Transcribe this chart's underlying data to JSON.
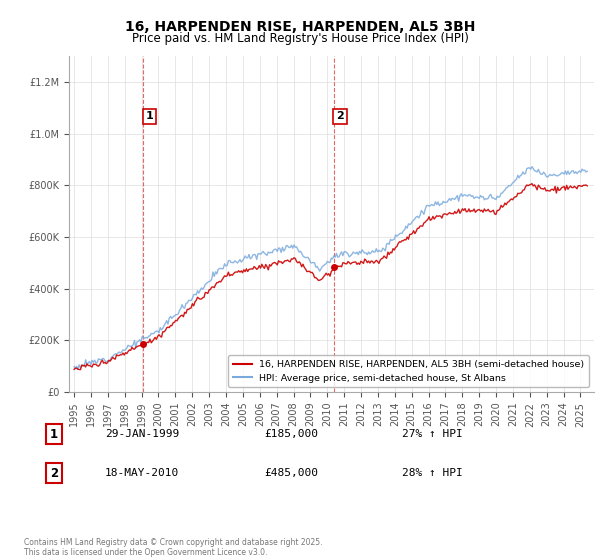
{
  "title": "16, HARPENDEN RISE, HARPENDEN, AL5 3BH",
  "subtitle": "Price paid vs. HM Land Registry's House Price Index (HPI)",
  "legend_line1": "16, HARPENDEN RISE, HARPENDEN, AL5 3BH (semi-detached house)",
  "legend_line2": "HPI: Average price, semi-detached house, St Albans",
  "footer": "Contains HM Land Registry data © Crown copyright and database right 2025.\nThis data is licensed under the Open Government Licence v3.0.",
  "annotation1_label": "1",
  "annotation1_date": "29-JAN-1999",
  "annotation1_price": "£185,000",
  "annotation1_hpi": "27% ↑ HPI",
  "annotation2_label": "2",
  "annotation2_date": "18-MAY-2010",
  "annotation2_price": "£485,000",
  "annotation2_hpi": "28% ↑ HPI",
  "red_color": "#cc0000",
  "blue_color": "#7aaadd",
  "vline_color": "#dd4444",
  "ylim": [
    0,
    1300000
  ],
  "yticks": [
    0,
    200000,
    400000,
    600000,
    800000,
    1000000,
    1200000
  ],
  "t1": 1999.08,
  "t2": 2010.38,
  "price1": 185000,
  "price2": 485000
}
